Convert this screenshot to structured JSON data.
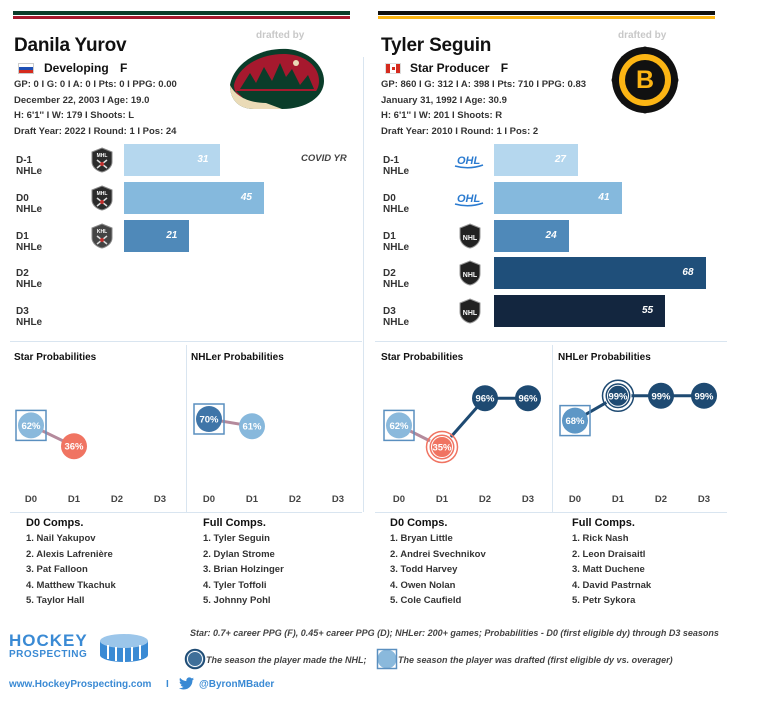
{
  "left": {
    "colors": {
      "bar_top": "#0a3d2a",
      "bar_bottom": "#a6192e"
    },
    "drafted_by": "drafted by",
    "team_logo": "minnesota-wild-logo",
    "name": "Danila Yurov",
    "flag": "russia-flag",
    "tier": "Developing",
    "position": "F",
    "info": [
      "GP: 0 I G: 0 I A: 0 I Pts: 0 I PPG: 0.00",
      "December 22, 2003 I Age: 19.0",
      "H: 6'1'' I W: 179 I Shoots: L",
      "Draft Year: 2022 I Round: 1 I Pos: 24"
    ],
    "note": "COVID YR",
    "rows": [
      {
        "label": "D-1 NHLe",
        "league": "MHL",
        "value": 31,
        "display": "31",
        "color": "#b5d7ee"
      },
      {
        "label": "D0 NHLe",
        "league": "MHL",
        "value": 45,
        "display": "45",
        "color": "#85b9dd"
      },
      {
        "label": "D1 NHLe",
        "league": "KHL",
        "value": 21,
        "display": "21",
        "color": "#4f89b9"
      },
      {
        "label": "D2 NHLe",
        "league": "",
        "value": null,
        "display": "",
        "color": ""
      },
      {
        "label": "D3 NHLe",
        "league": "",
        "value": null,
        "display": "",
        "color": ""
      }
    ],
    "star_title": "Star Probabilities",
    "nhler_title": "NHLer Probabilities",
    "star_probs": [
      {
        "season": "D0",
        "value": 62,
        "label": "62%",
        "color": "#8ab9dc",
        "drafted": true
      },
      {
        "season": "D1",
        "value": 36,
        "label": "36%",
        "color": "#f07462",
        "drafted": false
      }
    ],
    "nhler_probs": [
      {
        "season": "D0",
        "value": 70,
        "label": "70%",
        "color": "#3f75a8",
        "drafted": true
      },
      {
        "season": "D1",
        "value": 61,
        "label": "61%",
        "color": "#87b8dc",
        "drafted": false
      }
    ],
    "d0_comps_title": "D0 Comps.",
    "d0_comps": [
      "1. Nail Yakupov",
      "2. Alexis Lafrenière",
      "3. Pat Falloon",
      "4. Matthew Tkachuk",
      "5. Taylor Hall"
    ],
    "full_comps_title": "Full Comps.",
    "full_comps": [
      "1. Tyler Seguin",
      "2. Dylan Strome",
      "3. Brian Holzinger",
      "4. Tyler Toffoli",
      "5. Johnny Pohl"
    ]
  },
  "right": {
    "colors": {
      "bar_top": "#111111",
      "bar_bottom": "#fcb514"
    },
    "drafted_by": "drafted by",
    "team_logo": "boston-bruins-logo",
    "name": "Tyler Seguin",
    "flag": "canada-flag",
    "tier": "Star Producer",
    "position": "F",
    "info": [
      "GP: 860 I G: 312 I A: 398 I Pts: 710 I PPG: 0.83",
      "January 31, 1992 I Age: 30.9",
      "H: 6'1'' I W: 201 I Shoots: R",
      "Draft Year: 2010 I Round: 1 I Pos: 2"
    ],
    "rows": [
      {
        "label": "D-1 NHLe",
        "league": "OHL",
        "value": 27,
        "display": "27",
        "color": "#b5d7ee"
      },
      {
        "label": "D0 NHLe",
        "league": "OHL",
        "value": 41,
        "display": "41",
        "color": "#85b9dd"
      },
      {
        "label": "D1 NHLe",
        "league": "NHL",
        "value": 24,
        "display": "24",
        "color": "#4f89b9"
      },
      {
        "label": "D2 NHLe",
        "league": "NHL",
        "value": 68,
        "display": "68",
        "color": "#1f4f7a"
      },
      {
        "label": "D3 NHLe",
        "league": "NHL",
        "value": 55,
        "display": "55",
        "color": "#13263f"
      }
    ],
    "star_title": "Star Probabilities",
    "nhler_title": "NHLer Probabilities",
    "star_probs": [
      {
        "season": "D0",
        "value": 62,
        "label": "62%",
        "color": "#8ab9dc",
        "drafted": true,
        "made_nhl": false
      },
      {
        "season": "D1",
        "value": 35,
        "label": "35%",
        "color": "#f07462",
        "drafted": false,
        "made_nhl": true
      },
      {
        "season": "D2",
        "value": 96,
        "label": "96%",
        "color": "#1e4a72",
        "drafted": false,
        "made_nhl": false
      },
      {
        "season": "D3",
        "value": 96,
        "label": "96%",
        "color": "#1e4a72",
        "drafted": false,
        "made_nhl": false
      }
    ],
    "nhler_probs": [
      {
        "season": "D0",
        "value": 68,
        "label": "68%",
        "color": "#5d97c6",
        "drafted": true,
        "made_nhl": false
      },
      {
        "season": "D1",
        "value": 99,
        "label": "99%",
        "color": "#1e4a72",
        "drafted": false,
        "made_nhl": true
      },
      {
        "season": "D2",
        "value": 99,
        "label": "99%",
        "color": "#1e4a72",
        "drafted": false,
        "made_nhl": false
      },
      {
        "season": "D3",
        "value": 99,
        "label": "99%",
        "color": "#1e4a72",
        "drafted": false,
        "made_nhl": false
      }
    ],
    "d0_comps_title": "D0 Comps.",
    "d0_comps": [
      "1. Bryan Little",
      "2. Andrei Svechnikov",
      "3. Todd Harvey",
      "4. Owen Nolan",
      "5. Cole Caufield"
    ],
    "full_comps_title": "Full Comps.",
    "full_comps": [
      "1. Rick Nash",
      "2. Leon Draisaitl",
      "3. Matt Duchene",
      "4. David Pastrnak",
      "5. Petr Sykora"
    ]
  },
  "axis_seasons": [
    "D0",
    "D1",
    "D2",
    "D3"
  ],
  "footer": {
    "brand_line1": "HOCKEY",
    "brand_line2": "PROSPECTING",
    "definition": "Star: 0.7+ career PPG (F), 0.45+ career PPG (D); NHLer: 200+ games; Probabilities - D0 (first eligible dy) through D3 seasons",
    "legend_made_nhl": "The season the player made the NHL;",
    "legend_drafted": "The season the player was drafted (first eligible dy vs. overager)",
    "website": "www.HockeyProspecting.com",
    "separator": "I",
    "twitter": "@ByronMBader"
  },
  "chart_data": [
    {
      "type": "bar",
      "title": "Danila Yurov NHLe",
      "categories": [
        "D-1 NHLe",
        "D0 NHLe",
        "D1 NHLe",
        "D2 NHLe",
        "D3 NHLe"
      ],
      "values": [
        31,
        45,
        21,
        null,
        null
      ],
      "xlim": [
        0,
        90
      ]
    },
    {
      "type": "bar",
      "title": "Tyler Seguin NHLe",
      "categories": [
        "D-1 NHLe",
        "D0 NHLe",
        "D1 NHLe",
        "D2 NHLe",
        "D3 NHLe"
      ],
      "values": [
        27,
        41,
        24,
        68,
        55
      ],
      "xlim": [
        0,
        90
      ]
    },
    {
      "type": "line",
      "title": "Danila Yurov Star Probabilities",
      "x": [
        "D0",
        "D1"
      ],
      "values": [
        62,
        36
      ],
      "ylim": [
        0,
        100
      ]
    },
    {
      "type": "line",
      "title": "Danila Yurov NHLer Probabilities",
      "x": [
        "D0",
        "D1"
      ],
      "values": [
        70,
        61
      ],
      "ylim": [
        0,
        100
      ]
    },
    {
      "type": "line",
      "title": "Tyler Seguin Star Probabilities",
      "x": [
        "D0",
        "D1",
        "D2",
        "D3"
      ],
      "values": [
        62,
        35,
        96,
        96
      ],
      "ylim": [
        0,
        100
      ]
    },
    {
      "type": "line",
      "title": "Tyler Seguin NHLer Probabilities",
      "x": [
        "D0",
        "D1",
        "D2",
        "D3"
      ],
      "values": [
        68,
        99,
        99,
        99
      ],
      "ylim": [
        0,
        100
      ]
    }
  ]
}
